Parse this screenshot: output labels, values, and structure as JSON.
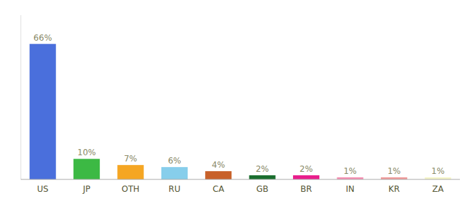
{
  "chart_data": {
    "type": "bar",
    "categories": [
      "US",
      "JP",
      "OTH",
      "RU",
      "CA",
      "GB",
      "BR",
      "IN",
      "KR",
      "ZA"
    ],
    "values": [
      66,
      10,
      7,
      6,
      4,
      2,
      2,
      1,
      1,
      1
    ],
    "value_labels": [
      "66%",
      "10%",
      "7%",
      "6%",
      "4%",
      "2%",
      "2%",
      "1%",
      "1%",
      "1%"
    ],
    "colors": [
      "#4a6fdc",
      "#3cb944",
      "#f5a623",
      "#87ceeb",
      "#c8612a",
      "#1a6e2e",
      "#e91e8c",
      "#f48fb1",
      "#ef9a9a",
      "#f5f5c8"
    ],
    "ylim": [
      0,
      80
    ],
    "data_labels": true,
    "tick_labels": "x",
    "grid": false
  }
}
